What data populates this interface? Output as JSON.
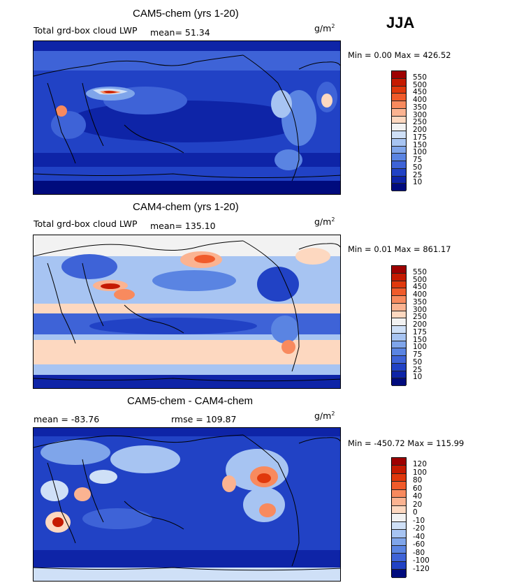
{
  "season": "JJA",
  "units_base": "g/m",
  "units_exp": "2",
  "panels": [
    {
      "title": "CAM5-chem (yrs 1-20)",
      "subtitle": "Total grd-box cloud LWP",
      "stat": "mean=  51.34",
      "minmax": "Min =   0.00 Max = 426.52",
      "colorbar_labels": [
        "550",
        "500",
        "450",
        "400",
        "350",
        "300",
        "250",
        "200",
        "175",
        "150",
        "100",
        "75",
        "50",
        "25",
        "10"
      ],
      "colorbar_colors": [
        "#9e0000",
        "#c51a00",
        "#e0380c",
        "#f05b2b",
        "#f88a5e",
        "#fbb391",
        "#fdd8c0",
        "#f2f2f2",
        "#cfe0f7",
        "#a7c4f2",
        "#7fa5ea",
        "#5a84e2",
        "#3e63d7",
        "#2142c5",
        "#0e24a7",
        "#000b7d"
      ]
    },
    {
      "title": "CAM4-chem (yrs 1-20)",
      "subtitle": "Total grd-box cloud LWP",
      "stat": "mean= 135.10",
      "minmax": "Min =   0.01 Max = 861.17",
      "colorbar_labels": [
        "550",
        "500",
        "450",
        "400",
        "350",
        "300",
        "250",
        "200",
        "175",
        "150",
        "100",
        "75",
        "50",
        "25",
        "10"
      ],
      "colorbar_colors": [
        "#9e0000",
        "#c51a00",
        "#e0380c",
        "#f05b2b",
        "#f88a5e",
        "#fbb391",
        "#fdd8c0",
        "#f2f2f2",
        "#cfe0f7",
        "#a7c4f2",
        "#7fa5ea",
        "#5a84e2",
        "#3e63d7",
        "#2142c5",
        "#0e24a7",
        "#000b7d"
      ]
    },
    {
      "title": "CAM5-chem - CAM4-chem",
      "stat_mean": "mean = -83.76",
      "stat_rmse": "rmse = 109.87",
      "minmax": "Min = -450.72 Max = 115.99",
      "colorbar_labels": [
        "120",
        "100",
        "80",
        "60",
        "40",
        "20",
        "0",
        "-10",
        "-20",
        "-40",
        "-60",
        "-80",
        "-100",
        "-120"
      ],
      "colorbar_colors": [
        "#9e0000",
        "#c51a00",
        "#e0380c",
        "#f05b2b",
        "#f88a5e",
        "#fbb391",
        "#fdd8c0",
        "#f2f2f2",
        "#cfe0f7",
        "#a7c4f2",
        "#7fa5ea",
        "#5a84e2",
        "#3e63d7",
        "#2142c5",
        "#000b7d"
      ]
    }
  ]
}
